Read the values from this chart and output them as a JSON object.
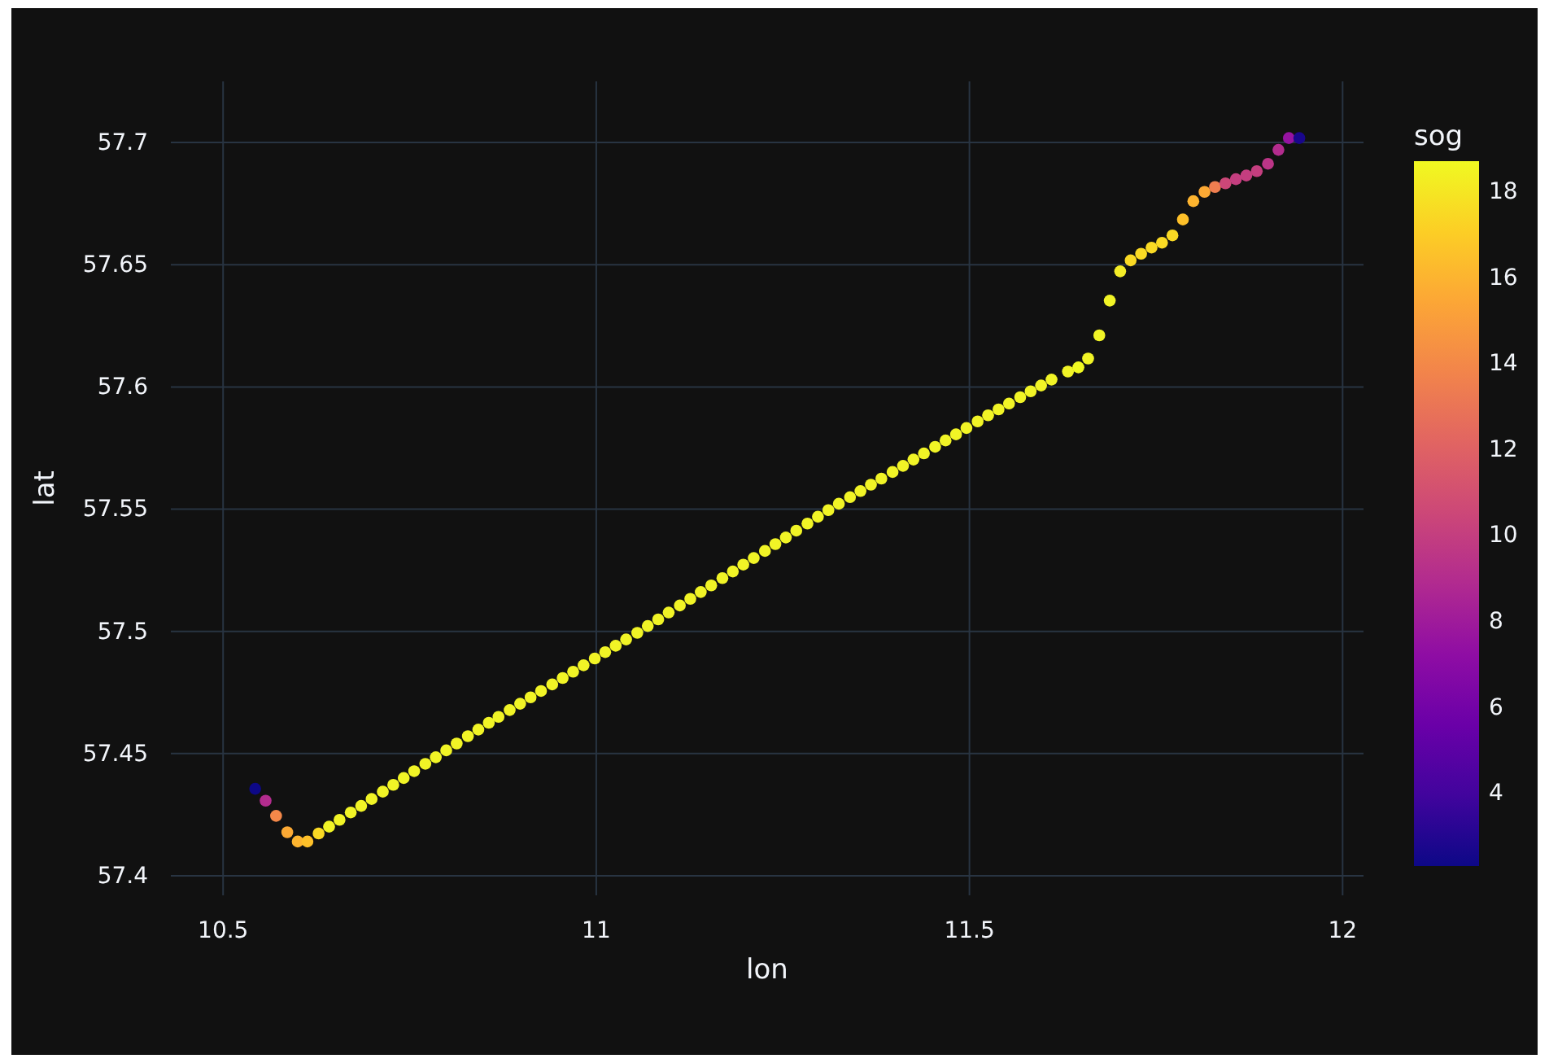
{
  "chart_data": {
    "type": "scatter",
    "xlabel": "lon",
    "ylabel": "lat",
    "clabel": "sog",
    "marker": "circle",
    "grid": true,
    "xlim": [
      10.43,
      12.028
    ],
    "xticks": [
      10.5,
      11,
      11.5,
      12
    ],
    "ylim": [
      57.392,
      57.725
    ],
    "yticks": [
      57.4,
      57.45,
      57.5,
      57.55,
      57.6,
      57.65,
      57.7
    ],
    "clim": [
      2.3,
      18.7
    ],
    "cticks": [
      4,
      6,
      8,
      10,
      12,
      14,
      16,
      18
    ],
    "x": [
      10.543,
      10.557,
      10.571,
      10.586,
      10.6,
      10.613,
      10.628,
      10.642,
      10.656,
      10.671,
      10.685,
      10.699,
      10.714,
      10.728,
      10.742,
      10.756,
      10.771,
      10.785,
      10.799,
      10.813,
      10.828,
      10.842,
      10.856,
      10.869,
      10.884,
      10.898,
      10.912,
      10.926,
      10.941,
      10.955,
      10.969,
      10.983,
      10.998,
      11.012,
      11.026,
      11.04,
      11.055,
      11.069,
      11.083,
      11.097,
      11.112,
      11.126,
      11.14,
      11.154,
      11.169,
      11.183,
      11.197,
      11.211,
      11.226,
      11.24,
      11.254,
      11.268,
      11.283,
      11.297,
      11.311,
      11.325,
      11.34,
      11.354,
      11.368,
      11.382,
      11.397,
      11.411,
      11.425,
      11.439,
      11.454,
      11.468,
      11.482,
      11.496,
      11.511,
      11.525,
      11.539,
      11.553,
      11.568,
      11.582,
      11.596,
      11.61,
      11.632,
      11.646,
      11.659,
      11.674,
      11.688,
      11.702,
      11.716,
      11.73,
      11.744,
      11.758,
      11.772,
      11.786,
      11.8,
      11.815,
      11.829,
      11.843,
      11.857,
      11.871,
      11.885,
      11.9,
      11.914,
      11.928,
      11.942
    ],
    "values": [
      57.4356,
      57.4307,
      57.4245,
      57.4178,
      57.414,
      57.414,
      57.4173,
      57.4201,
      57.4229,
      57.4259,
      57.4286,
      57.4314,
      57.4344,
      57.4372,
      57.44,
      57.4428,
      57.4458,
      57.4485,
      57.4513,
      57.4541,
      57.4571,
      57.4598,
      57.4626,
      57.465,
      57.4678,
      57.4704,
      57.473,
      57.4756,
      57.4783,
      57.4809,
      57.4835,
      57.4861,
      57.4889,
      57.4915,
      57.4941,
      57.4967,
      57.4994,
      57.5022,
      57.5049,
      57.5077,
      57.5106,
      57.5133,
      57.5161,
      57.5188,
      57.5218,
      57.5245,
      57.5273,
      57.53,
      57.5329,
      57.5357,
      57.5384,
      57.5412,
      57.5441,
      57.5469,
      57.5496,
      57.5522,
      57.5549,
      57.5574,
      57.56,
      57.5625,
      57.5652,
      57.5677,
      57.5703,
      57.5728,
      57.5755,
      57.5781,
      57.5806,
      57.5832,
      57.5859,
      57.5884,
      57.5908,
      57.5932,
      57.5958,
      57.5982,
      57.6006,
      57.603,
      57.6063,
      57.608,
      57.6116,
      57.6211,
      57.6353,
      57.6473,
      57.6518,
      57.6545,
      57.657,
      57.659,
      57.662,
      57.6685,
      57.676,
      57.6798,
      57.6818,
      57.6833,
      57.685,
      57.6865,
      57.6883,
      57.6913,
      57.697,
      57.7018,
      57.7018
    ],
    "cvalues": [
      2.3,
      9,
      14,
      15.5,
      16,
      16.5,
      17.5,
      18.5,
      18.5,
      18.5,
      18.5,
      18.5,
      18.5,
      18.5,
      18.5,
      18.5,
      18.5,
      18.5,
      18.5,
      18.5,
      18.5,
      18.5,
      18.5,
      18.5,
      18.5,
      18.5,
      18.5,
      18.5,
      18.5,
      18.5,
      18.5,
      18.5,
      18.5,
      18.5,
      18.5,
      18.5,
      18.5,
      18.5,
      18.5,
      18.5,
      18.5,
      18.5,
      18.5,
      18.5,
      18.5,
      18.5,
      18.5,
      18.5,
      18.5,
      18.5,
      18.5,
      18.5,
      18.5,
      18.5,
      18.5,
      18.5,
      18.5,
      18.5,
      18.5,
      18.5,
      18.5,
      18.5,
      18.5,
      18.5,
      18.5,
      18.5,
      18.5,
      18.5,
      18.5,
      18.5,
      18.5,
      18.5,
      18.5,
      18.5,
      18.5,
      18.5,
      18.5,
      18.7,
      18.5,
      18.5,
      18.5,
      18.2,
      17.5,
      17.5,
      17.5,
      17.5,
      17.5,
      16.5,
      16,
      15.5,
      13.5,
      10.5,
      10,
      10,
      10,
      9.5,
      9,
      7.5,
      2.6
    ]
  }
}
